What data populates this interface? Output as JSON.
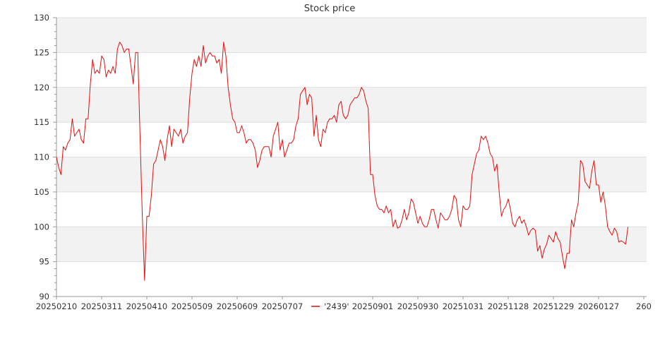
{
  "chart_data": {
    "type": "line",
    "title": "Stock price",
    "xlabel": "",
    "ylabel": "",
    "ylim": [
      90,
      130
    ],
    "yticks": [
      90,
      95,
      100,
      105,
      110,
      115,
      120,
      125,
      130
    ],
    "xticks": [
      {
        "i": 0,
        "label": "20250210"
      },
      {
        "i": 20,
        "label": "20250311"
      },
      {
        "i": 40,
        "label": "20250410"
      },
      {
        "i": 60,
        "label": "20250509"
      },
      {
        "i": 80,
        "label": "20250609"
      },
      {
        "i": 100,
        "label": "20250707"
      },
      {
        "i": 140,
        "label": "20250901"
      },
      {
        "i": 160,
        "label": "20250930"
      },
      {
        "i": 180,
        "label": "20251031"
      },
      {
        "i": 200,
        "label": "20251128"
      },
      {
        "i": 220,
        "label": "20251229"
      },
      {
        "i": 240,
        "label": "20260127"
      },
      {
        "i": 260,
        "label": "260"
      }
    ],
    "xlim": [
      0,
      259
    ],
    "grid": true,
    "legend": {
      "placement": "bottom-center",
      "entries": [
        "'2439'"
      ]
    },
    "colors": {
      "line": "#dd1111",
      "band": "#f2f2f2",
      "grid": "#dddddd",
      "axis": "#999999"
    },
    "series": [
      {
        "name": "'2439'",
        "values": [
          110.0,
          108.5,
          107.5,
          111.5,
          111.0,
          112.0,
          112.5,
          115.5,
          113.0,
          113.5,
          114.0,
          112.5,
          112.0,
          115.5,
          115.5,
          120.5,
          124.0,
          122.0,
          122.5,
          122.0,
          124.5,
          124.0,
          121.5,
          122.5,
          122.0,
          123.0,
          122.0,
          125.5,
          126.5,
          126.0,
          125.0,
          125.5,
          125.5,
          123.0,
          120.5,
          125.0,
          125.0,
          113.0,
          101.5,
          92.3,
          101.5,
          101.5,
          104.5,
          109.0,
          109.5,
          111.0,
          112.5,
          111.5,
          109.5,
          112.5,
          114.5,
          111.5,
          114.0,
          113.5,
          113.0,
          114.0,
          112.0,
          113.0,
          113.5,
          118.5,
          122.0,
          124.0,
          123.0,
          124.5,
          123.0,
          126.0,
          123.5,
          124.5,
          125.0,
          124.5,
          124.5,
          123.5,
          124.0,
          122.0,
          126.5,
          124.5,
          120.0,
          117.5,
          115.5,
          115.0,
          113.5,
          113.5,
          114.5,
          113.5,
          112.0,
          112.5,
          112.5,
          112.0,
          111.0,
          108.5,
          109.5,
          111.0,
          111.5,
          111.5,
          111.5,
          110.0,
          113.0,
          114.0,
          115.0,
          111.0,
          112.5,
          110.0,
          111.0,
          112.0,
          112.0,
          112.5,
          114.5,
          115.5,
          119.0,
          119.5,
          120.0,
          117.5,
          119.0,
          118.5,
          113.0,
          116.0,
          112.5,
          111.5,
          114.0,
          113.5,
          115.0,
          115.5,
          115.5,
          116.0,
          115.0,
          117.5,
          118.0,
          116.0,
          115.5,
          116.0,
          117.5,
          118.0,
          118.5,
          118.5,
          119.0,
          120.0,
          119.5,
          118.0,
          117.0,
          107.5,
          107.5,
          104.5,
          103.0,
          102.5,
          102.5,
          102.0,
          103.0,
          102.0,
          102.5,
          100.0,
          101.0,
          99.8,
          100.0,
          101.0,
          102.5,
          101.0,
          102.0,
          104.0,
          103.5,
          102.0,
          100.5,
          101.5,
          100.5,
          100.0,
          100.0,
          101.0,
          102.5,
          102.5,
          101.0,
          99.8,
          102.0,
          101.5,
          101.0,
          101.0,
          101.5,
          102.5,
          104.5,
          104.0,
          101.0,
          100.0,
          103.0,
          102.5,
          102.5,
          103.0,
          107.5,
          109.0,
          110.5,
          111.0,
          113.0,
          112.5,
          113.0,
          112.0,
          110.5,
          110.0,
          108.0,
          109.0,
          105.0,
          101.5,
          102.5,
          103.0,
          104.0,
          102.5,
          100.5,
          100.0,
          101.0,
          101.5,
          100.5,
          101.0,
          100.0,
          98.8,
          99.5,
          99.8,
          99.5,
          96.5,
          97.3,
          95.5,
          96.8,
          97.5,
          98.8,
          98.3,
          97.8,
          99.3,
          98.3,
          97.8,
          95.8,
          94.0,
          96.2,
          96.2,
          101.0,
          100.0,
          102.0,
          103.5,
          109.5,
          109.0,
          106.5,
          106.0,
          105.5,
          108.0,
          109.5,
          106.0,
          106.0,
          103.5,
          105.0,
          103.0,
          100.0,
          99.3,
          98.8,
          99.8,
          99.3,
          97.8,
          98.0,
          97.8,
          97.5,
          100.0
        ]
      }
    ]
  }
}
